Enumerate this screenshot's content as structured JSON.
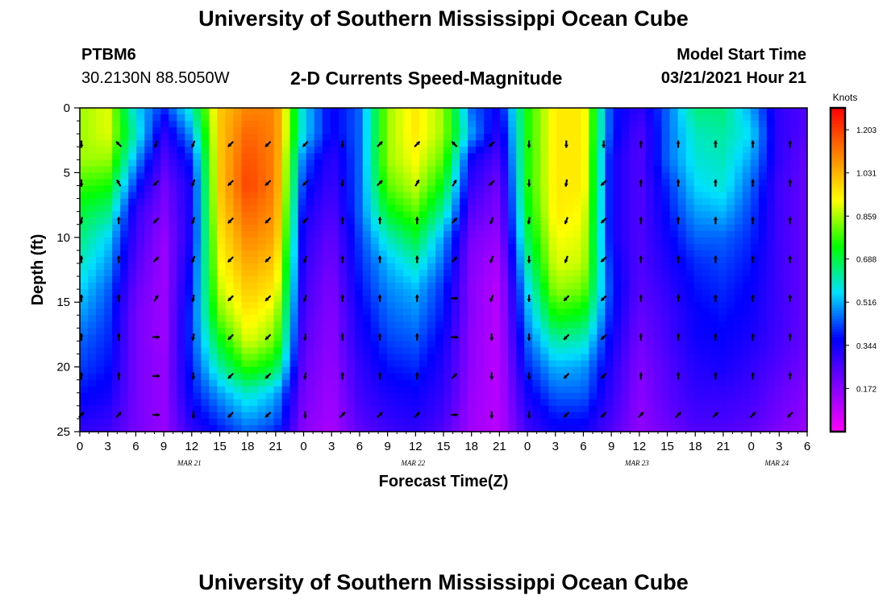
{
  "page": {
    "title_top": "University of Southern Mississippi Ocean Cube",
    "title_bottom": "University of Southern Mississippi Ocean Cube",
    "station": "PTBM6",
    "coordinates": "30.2130N 88.5050W",
    "model_start_label": "Model Start Time",
    "model_start_value": "03/21/2021 Hour 21"
  },
  "chart_data": {
    "type": "heatmap",
    "title": "2-D Currents Speed-Magnitude",
    "xlabel": "Forecast Time(Z)",
    "ylabel": "Depth (ft)",
    "colorbar_label": "Knots",
    "x_range_hours": [
      0,
      78
    ],
    "y_range_ft": [
      0,
      25
    ],
    "x_tick_labels": [
      "0",
      "3",
      "6",
      "9",
      "12",
      "15",
      "18",
      "21",
      "0",
      "3",
      "6",
      "9",
      "12",
      "15",
      "18",
      "21",
      "0",
      "3",
      "6",
      "9",
      "12",
      "15",
      "18",
      "21",
      "0",
      "3",
      "6"
    ],
    "date_labels": [
      {
        "label": "MAR 21",
        "hour": 12
      },
      {
        "label": "MAR 22",
        "hour": 36
      },
      {
        "label": "MAR 23",
        "hour": 60
      },
      {
        "label": "MAR 24",
        "hour": 75
      }
    ],
    "y_ticks": [
      0,
      5,
      10,
      15,
      20,
      25
    ],
    "colorbar_ticks": [
      "1.203",
      "1.031",
      "0.859",
      "0.688",
      "0.516",
      "0.344",
      "0.172"
    ],
    "colorbar_range": [
      0.0,
      1.29
    ],
    "colorscale": [
      "#ff00ff",
      "#8000ff",
      "#0000ff",
      "#00e0ff",
      "#00ff00",
      "#ffff00",
      "#ff8000",
      "#ff0000"
    ],
    "speed_hours": [
      0,
      3,
      6,
      9,
      12,
      15,
      18,
      21,
      24,
      27,
      30,
      33,
      36,
      39,
      42,
      45,
      48,
      51,
      54,
      57,
      60,
      63,
      66,
      69,
      72,
      75,
      78
    ],
    "speed_depths_ft": [
      0,
      2,
      4,
      6,
      8,
      10,
      12,
      14,
      16,
      18,
      20,
      22,
      24,
      25
    ],
    "speed_knots": [
      [
        0.85,
        0.9,
        0.55,
        0.4,
        0.6,
        1.0,
        1.1,
        1.1,
        0.55,
        0.35,
        0.45,
        0.85,
        0.95,
        0.85,
        0.45,
        0.35,
        0.75,
        0.95,
        0.95,
        0.4,
        0.3,
        0.45,
        0.65,
        0.65,
        0.5,
        0.3,
        0.25
      ],
      [
        0.85,
        0.9,
        0.6,
        0.3,
        0.5,
        1.0,
        1.15,
        1.1,
        0.55,
        0.35,
        0.45,
        0.85,
        0.95,
        0.85,
        0.5,
        0.3,
        0.75,
        0.95,
        0.95,
        0.4,
        0.25,
        0.45,
        0.6,
        0.62,
        0.55,
        0.3,
        0.25
      ],
      [
        0.85,
        0.85,
        0.5,
        0.25,
        0.4,
        1.0,
        1.18,
        1.1,
        0.45,
        0.3,
        0.45,
        0.85,
        0.92,
        0.8,
        0.35,
        0.25,
        0.75,
        0.95,
        0.95,
        0.35,
        0.25,
        0.45,
        0.58,
        0.6,
        0.5,
        0.3,
        0.22
      ],
      [
        0.78,
        0.75,
        0.4,
        0.2,
        0.35,
        1.0,
        1.2,
        1.1,
        0.4,
        0.28,
        0.45,
        0.8,
        0.88,
        0.72,
        0.3,
        0.2,
        0.75,
        0.95,
        0.95,
        0.35,
        0.25,
        0.4,
        0.55,
        0.58,
        0.45,
        0.28,
        0.22
      ],
      [
        0.7,
        0.65,
        0.3,
        0.18,
        0.35,
        0.98,
        1.15,
        1.08,
        0.35,
        0.25,
        0.45,
        0.72,
        0.8,
        0.62,
        0.25,
        0.18,
        0.72,
        0.95,
        0.92,
        0.35,
        0.25,
        0.38,
        0.5,
        0.52,
        0.42,
        0.28,
        0.22
      ],
      [
        0.65,
        0.55,
        0.28,
        0.15,
        0.35,
        0.95,
        1.1,
        1.05,
        0.32,
        0.22,
        0.42,
        0.6,
        0.7,
        0.5,
        0.2,
        0.15,
        0.68,
        0.92,
        0.9,
        0.35,
        0.25,
        0.35,
        0.45,
        0.45,
        0.4,
        0.28,
        0.22
      ],
      [
        0.6,
        0.5,
        0.25,
        0.14,
        0.38,
        0.92,
        1.05,
        1.0,
        0.3,
        0.2,
        0.4,
        0.52,
        0.6,
        0.45,
        0.18,
        0.12,
        0.62,
        0.9,
        0.88,
        0.38,
        0.25,
        0.33,
        0.4,
        0.42,
        0.38,
        0.28,
        0.22
      ],
      [
        0.55,
        0.45,
        0.22,
        0.14,
        0.4,
        0.88,
        1.0,
        0.95,
        0.28,
        0.18,
        0.38,
        0.48,
        0.52,
        0.4,
        0.17,
        0.1,
        0.55,
        0.85,
        0.82,
        0.4,
        0.24,
        0.3,
        0.38,
        0.4,
        0.36,
        0.28,
        0.22
      ],
      [
        0.5,
        0.42,
        0.2,
        0.14,
        0.42,
        0.82,
        0.95,
        0.88,
        0.26,
        0.17,
        0.35,
        0.45,
        0.48,
        0.38,
        0.17,
        0.1,
        0.5,
        0.75,
        0.72,
        0.38,
        0.22,
        0.28,
        0.36,
        0.38,
        0.35,
        0.28,
        0.22
      ],
      [
        0.45,
        0.4,
        0.2,
        0.14,
        0.42,
        0.72,
        0.9,
        0.82,
        0.24,
        0.16,
        0.33,
        0.42,
        0.44,
        0.35,
        0.16,
        0.1,
        0.45,
        0.62,
        0.6,
        0.35,
        0.2,
        0.27,
        0.35,
        0.36,
        0.33,
        0.27,
        0.22
      ],
      [
        0.42,
        0.38,
        0.2,
        0.15,
        0.4,
        0.62,
        0.78,
        0.7,
        0.22,
        0.15,
        0.3,
        0.38,
        0.4,
        0.32,
        0.16,
        0.1,
        0.4,
        0.52,
        0.5,
        0.32,
        0.18,
        0.25,
        0.32,
        0.34,
        0.3,
        0.25,
        0.2
      ],
      [
        0.38,
        0.35,
        0.2,
        0.15,
        0.38,
        0.5,
        0.6,
        0.52,
        0.2,
        0.14,
        0.28,
        0.34,
        0.36,
        0.3,
        0.15,
        0.1,
        0.35,
        0.45,
        0.45,
        0.3,
        0.17,
        0.24,
        0.3,
        0.3,
        0.28,
        0.22,
        0.18
      ],
      [
        0.33,
        0.3,
        0.2,
        0.15,
        0.33,
        0.42,
        0.5,
        0.45,
        0.18,
        0.13,
        0.25,
        0.3,
        0.32,
        0.27,
        0.14,
        0.1,
        0.3,
        0.38,
        0.38,
        0.27,
        0.16,
        0.22,
        0.27,
        0.27,
        0.25,
        0.2,
        0.16
      ],
      [
        0.3,
        0.28,
        0.2,
        0.15,
        0.3,
        0.38,
        0.45,
        0.4,
        0.17,
        0.12,
        0.23,
        0.28,
        0.3,
        0.25,
        0.14,
        0.1,
        0.28,
        0.35,
        0.35,
        0.25,
        0.16,
        0.2,
        0.25,
        0.25,
        0.23,
        0.18,
        0.15
      ]
    ],
    "arrow_hours": [
      0,
      4,
      8,
      12,
      16,
      20,
      24,
      28,
      32,
      36,
      40,
      44,
      48,
      52,
      56,
      60,
      64,
      68,
      72,
      76
    ],
    "arrow_depths_ft": [
      2.8,
      5.8,
      8.7,
      11.7,
      14.7,
      17.7,
      20.7,
      23.7
    ],
    "arrow_direction_deg": [
      [
        180,
        315,
        200,
        200,
        225,
        225,
        225,
        180,
        45,
        45,
        315,
        225,
        180,
        180,
        180,
        0,
        0,
        0,
        0,
        0
      ],
      [
        180,
        330,
        225,
        200,
        225,
        225,
        225,
        190,
        45,
        30,
        30,
        225,
        180,
        190,
        225,
        0,
        0,
        0,
        0,
        0
      ],
      [
        190,
        0,
        225,
        200,
        225,
        225,
        225,
        0,
        0,
        0,
        45,
        200,
        190,
        200,
        225,
        0,
        0,
        0,
        0,
        0
      ],
      [
        0,
        0,
        45,
        200,
        225,
        225,
        200,
        0,
        0,
        0,
        45,
        200,
        180,
        200,
        225,
        0,
        0,
        0,
        0,
        0
      ],
      [
        0,
        0,
        30,
        190,
        225,
        225,
        200,
        0,
        0,
        0,
        90,
        200,
        180,
        225,
        225,
        0,
        0,
        0,
        0,
        0
      ],
      [
        0,
        0,
        90,
        190,
        225,
        225,
        190,
        0,
        0,
        0,
        90,
        180,
        180,
        225,
        225,
        0,
        0,
        0,
        0,
        0
      ],
      [
        0,
        0,
        90,
        180,
        225,
        225,
        190,
        0,
        0,
        0,
        45,
        180,
        180,
        225,
        225,
        0,
        0,
        0,
        0,
        0
      ],
      [
        45,
        45,
        90,
        180,
        225,
        225,
        180,
        45,
        45,
        45,
        90,
        180,
        180,
        225,
        225,
        45,
        45,
        45,
        45,
        225
      ]
    ]
  }
}
